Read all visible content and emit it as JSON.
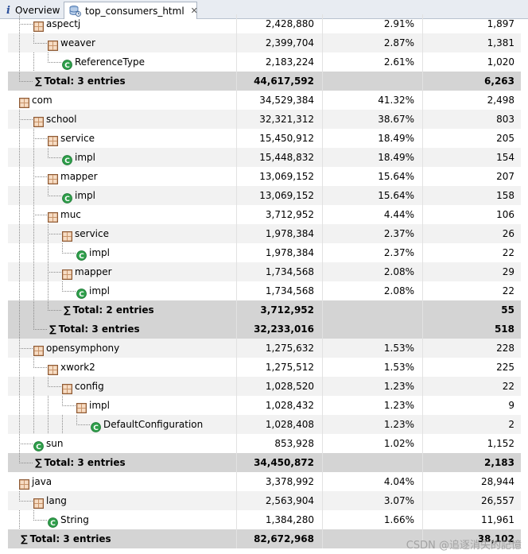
{
  "tabs": [
    {
      "label": "Overview",
      "icon": "info-icon"
    },
    {
      "label": "top_consumers_html",
      "icon": "database-icon",
      "close_icon": "close-icon"
    }
  ],
  "watermark": "CSDN @追逐消失的記憶",
  "colors": {
    "total_row": "#d4d4d4",
    "alt_row": "#f2f2f2",
    "class_icon": "#2e9e4a",
    "package_icon": "#c8946a"
  },
  "rows": [
    {
      "depth": 1,
      "kind": "package",
      "name": "aspectj",
      "size": "2,428,880",
      "pct": "2.91%",
      "count": "1,897"
    },
    {
      "depth": 2,
      "kind": "package",
      "name": "weaver",
      "size": "2,399,704",
      "pct": "2.87%",
      "count": "1,381"
    },
    {
      "depth": 3,
      "kind": "class",
      "name": "ReferenceType",
      "size": "2,183,224",
      "pct": "2.61%",
      "count": "1,020"
    },
    {
      "depth": 1,
      "kind": "total",
      "name": "Total: 3 entries",
      "size": "44,617,592",
      "pct": "",
      "count": "6,263"
    },
    {
      "depth": 0,
      "kind": "package",
      "name": "com",
      "size": "34,529,384",
      "pct": "41.32%",
      "count": "2,498"
    },
    {
      "depth": 1,
      "kind": "package",
      "name": "school",
      "size": "32,321,312",
      "pct": "38.67%",
      "count": "803"
    },
    {
      "depth": 2,
      "kind": "package",
      "name": "service",
      "size": "15,450,912",
      "pct": "18.49%",
      "count": "205"
    },
    {
      "depth": 3,
      "kind": "class",
      "name": "impl",
      "size": "15,448,832",
      "pct": "18.49%",
      "count": "154"
    },
    {
      "depth": 2,
      "kind": "package",
      "name": "mapper",
      "size": "13,069,152",
      "pct": "15.64%",
      "count": "207"
    },
    {
      "depth": 3,
      "kind": "class",
      "name": "impl",
      "size": "13,069,152",
      "pct": "15.64%",
      "count": "158"
    },
    {
      "depth": 2,
      "kind": "package",
      "name": "muc",
      "size": "3,712,952",
      "pct": "4.44%",
      "count": "106"
    },
    {
      "depth": 3,
      "kind": "package",
      "name": "service",
      "size": "1,978,384",
      "pct": "2.37%",
      "count": "26"
    },
    {
      "depth": 4,
      "kind": "class",
      "name": "impl",
      "size": "1,978,384",
      "pct": "2.37%",
      "count": "22"
    },
    {
      "depth": 3,
      "kind": "package",
      "name": "mapper",
      "size": "1,734,568",
      "pct": "2.08%",
      "count": "29"
    },
    {
      "depth": 4,
      "kind": "class",
      "name": "impl",
      "size": "1,734,568",
      "pct": "2.08%",
      "count": "22"
    },
    {
      "depth": 3,
      "kind": "total",
      "name": "Total: 2 entries",
      "size": "3,712,952",
      "pct": "",
      "count": "55"
    },
    {
      "depth": 2,
      "kind": "total",
      "name": "Total: 3 entries",
      "size": "32,233,016",
      "pct": "",
      "count": "518"
    },
    {
      "depth": 1,
      "kind": "package",
      "name": "opensymphony",
      "size": "1,275,632",
      "pct": "1.53%",
      "count": "228"
    },
    {
      "depth": 2,
      "kind": "package",
      "name": "xwork2",
      "size": "1,275,512",
      "pct": "1.53%",
      "count": "225"
    },
    {
      "depth": 3,
      "kind": "package",
      "name": "config",
      "size": "1,028,520",
      "pct": "1.23%",
      "count": "22"
    },
    {
      "depth": 4,
      "kind": "package",
      "name": "impl",
      "size": "1,028,432",
      "pct": "1.23%",
      "count": "9"
    },
    {
      "depth": 5,
      "kind": "class",
      "name": "DefaultConfiguration",
      "size": "1,028,408",
      "pct": "1.23%",
      "count": "2"
    },
    {
      "depth": 1,
      "kind": "class",
      "name": "sun",
      "size": "853,928",
      "pct": "1.02%",
      "count": "1,152"
    },
    {
      "depth": 1,
      "kind": "total",
      "name": "Total: 3 entries",
      "size": "34,450,872",
      "pct": "",
      "count": "2,183"
    },
    {
      "depth": 0,
      "kind": "package",
      "name": "java",
      "size": "3,378,992",
      "pct": "4.04%",
      "count": "28,944"
    },
    {
      "depth": 1,
      "kind": "package",
      "name": "lang",
      "size": "2,563,904",
      "pct": "3.07%",
      "count": "26,557"
    },
    {
      "depth": 2,
      "kind": "class",
      "name": "String",
      "size": "1,384,280",
      "pct": "1.66%",
      "count": "11,961"
    },
    {
      "depth": 0,
      "kind": "total",
      "name": "Total: 3 entries",
      "size": "82,672,968",
      "pct": "",
      "count": "38,102"
    }
  ]
}
